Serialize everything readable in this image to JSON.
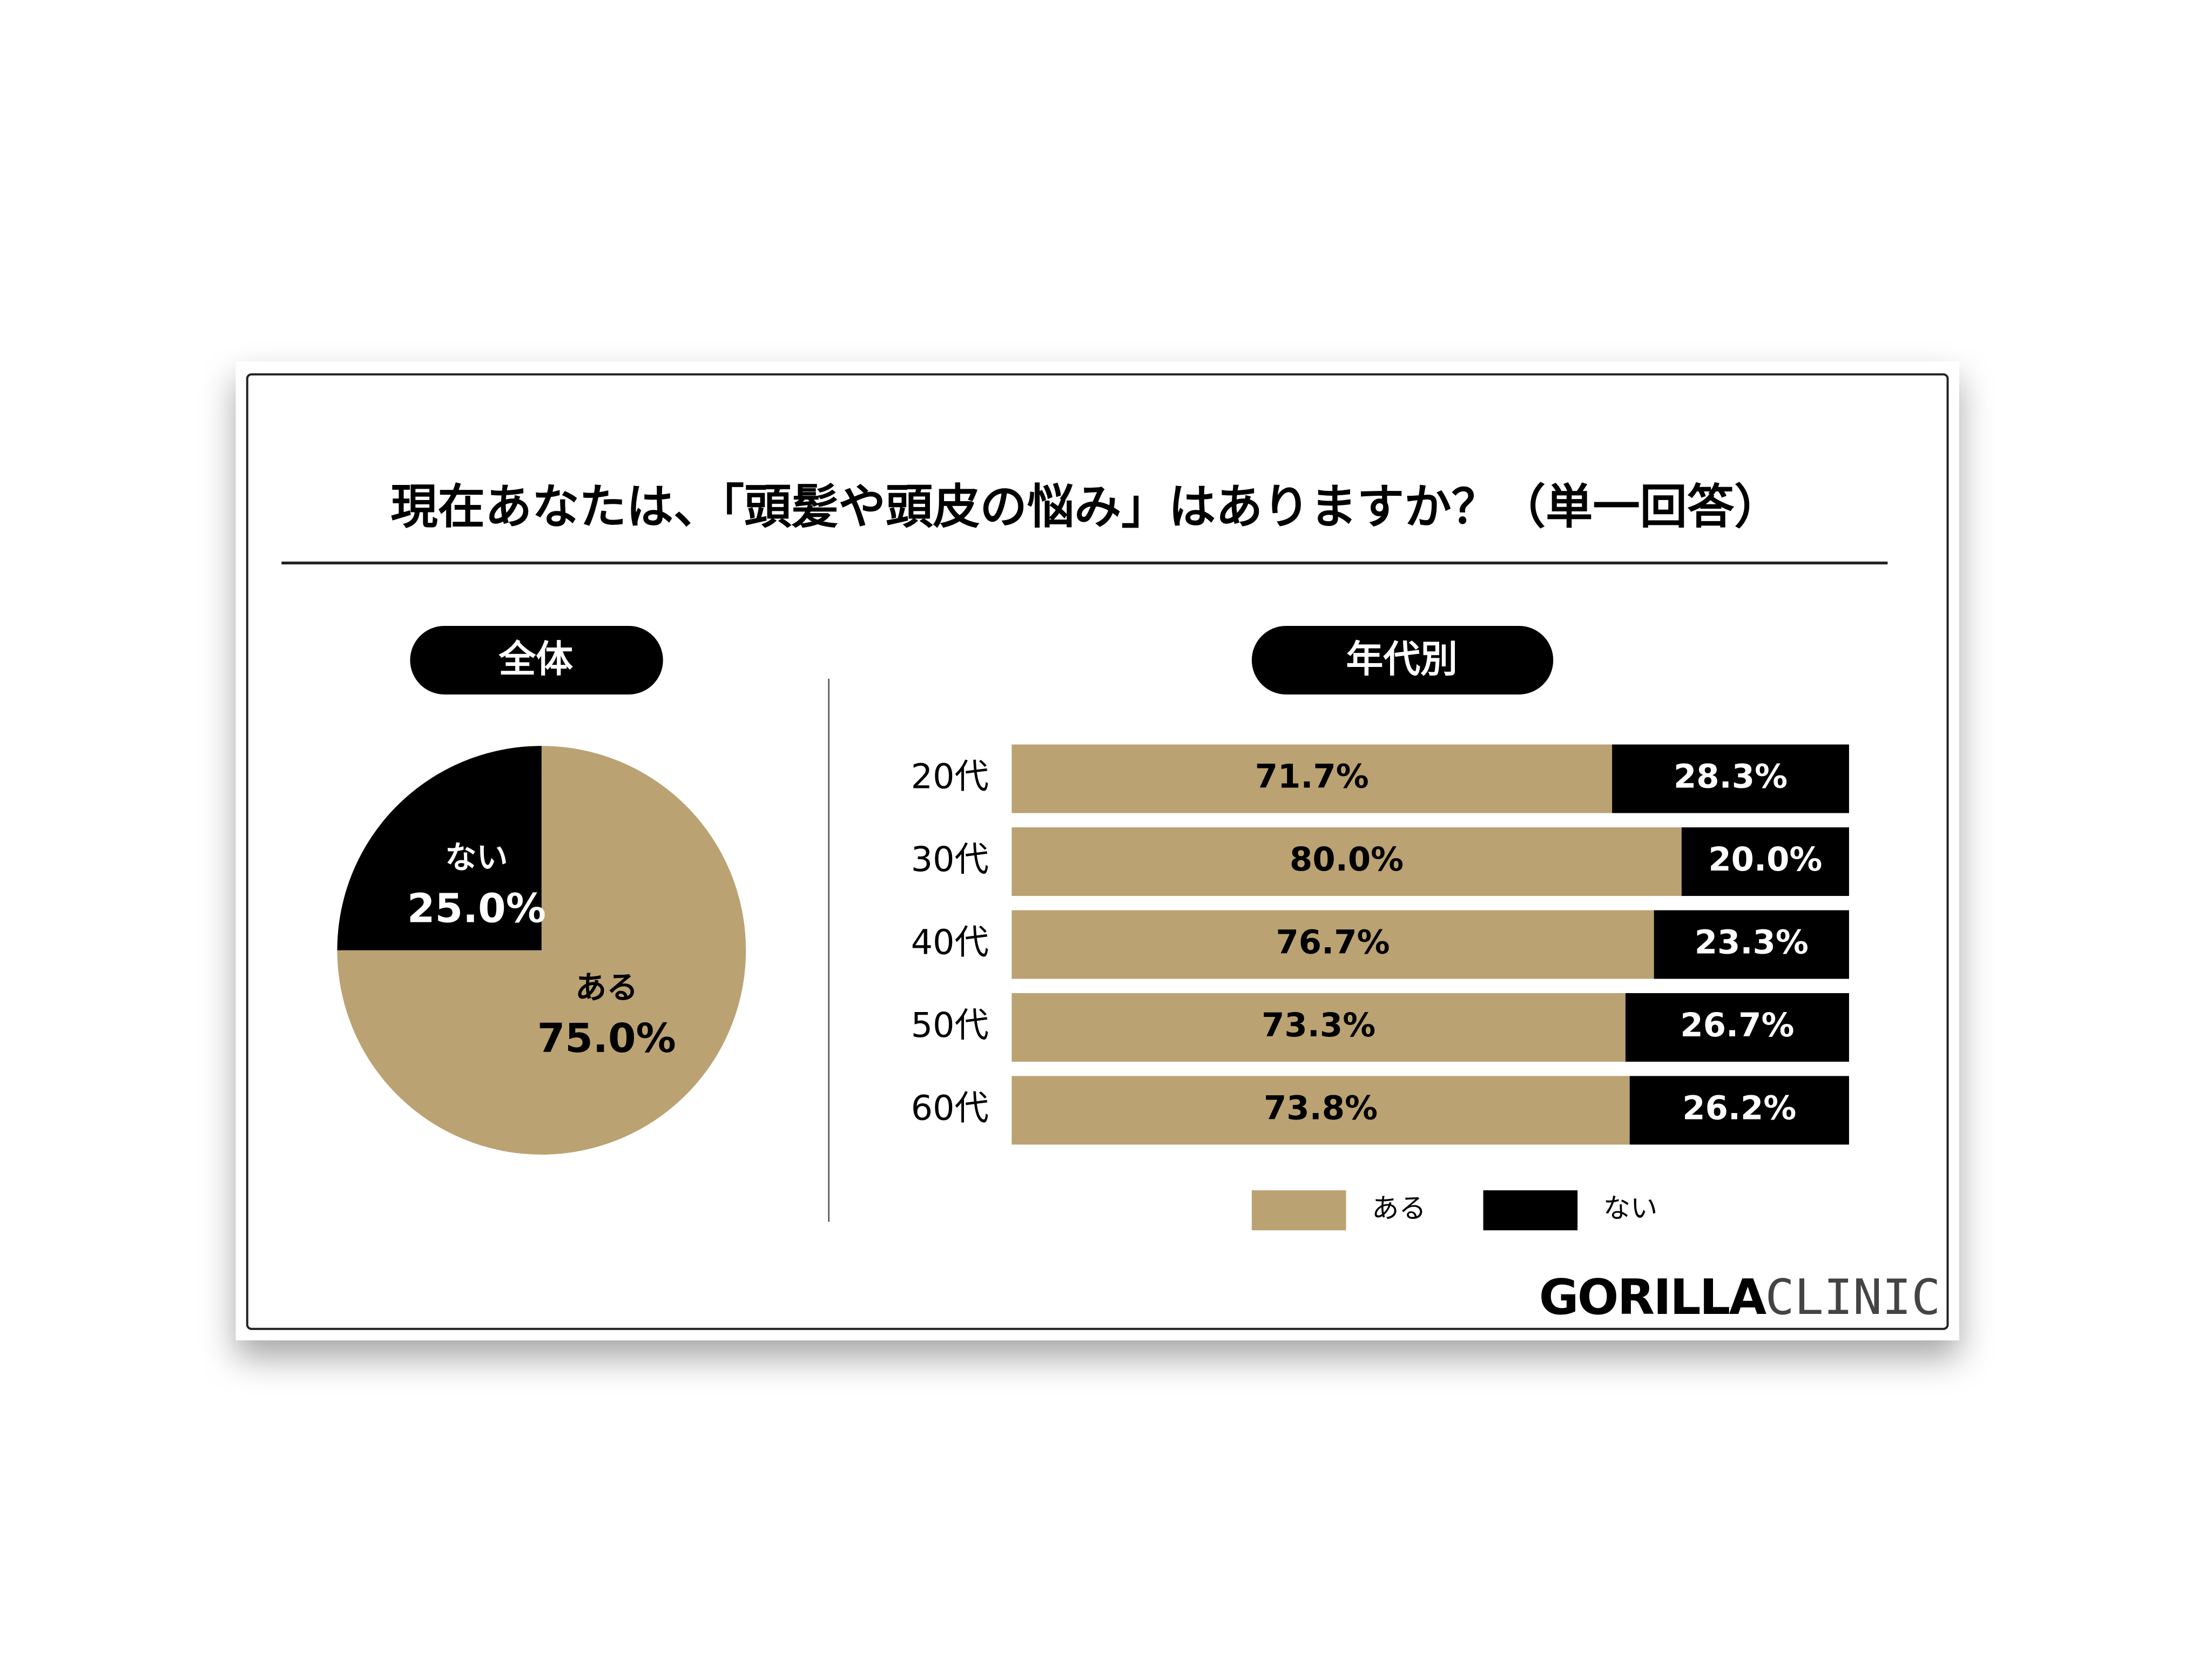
{
  "title": "現在あなたは、「頭髪や頭皮の悩み」はありますか？（単一回答）",
  "brand": {
    "bold": "GORILLA",
    "light": "CLINIC"
  },
  "chart_data": [
    {
      "type": "pie",
      "subtitle": "全体",
      "categories": [
        "ある",
        "ない"
      ],
      "values": [
        75.0,
        25.0
      ],
      "value_labels": [
        "75.0%",
        "25.0%"
      ],
      "colors": [
        "#bba272",
        "#000000"
      ]
    },
    {
      "type": "stacked-bar",
      "subtitle": "年代別",
      "categories": [
        "20代",
        "30代",
        "40代",
        "50代",
        "60代"
      ],
      "series": [
        {
          "name": "ある",
          "color": "#bba272",
          "values": [
            71.7,
            80.0,
            76.7,
            73.3,
            73.8
          ],
          "value_labels": [
            "71.7%",
            "80.0%",
            "76.7%",
            "73.3%",
            "73.8%"
          ]
        },
        {
          "name": "ない",
          "color": "#000000",
          "values": [
            28.3,
            20.0,
            23.3,
            26.7,
            26.2
          ],
          "value_labels": [
            "28.3%",
            "20.0%",
            "23.3%",
            "26.7%",
            "26.2%"
          ]
        }
      ],
      "xlim": [
        0,
        100
      ],
      "legend": "bottom"
    }
  ]
}
